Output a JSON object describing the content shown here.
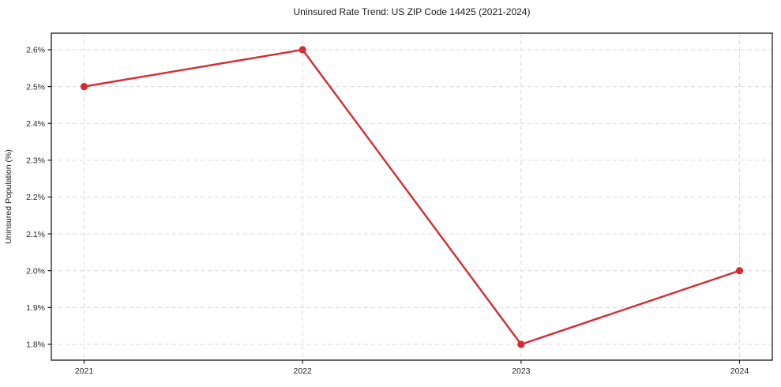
{
  "chart_data": {
    "type": "line",
    "title": "Uninsured Rate Trend: US ZIP Code 14425 (2021-2024)",
    "xlabel": "",
    "ylabel": "Uninsured Population (%)",
    "x": [
      2021,
      2022,
      2023,
      2024
    ],
    "series": [
      {
        "name": "Uninsured Population (%)",
        "values": [
          2.5,
          2.6,
          1.8,
          2.0
        ]
      }
    ],
    "xtick_labels": [
      "2021",
      "2022",
      "2023",
      "2024"
    ],
    "ytick_values": [
      1.8,
      1.9,
      2.0,
      2.1,
      2.2,
      2.3,
      2.4,
      2.5,
      2.6
    ],
    "ytick_labels": [
      "1.8%",
      "1.9%",
      "2.0%",
      "2.1%",
      "2.2%",
      "2.3%",
      "2.4%",
      "2.5%",
      "2.6%"
    ],
    "xlim": [
      2020.85,
      2024.15
    ],
    "ylim": [
      1.757,
      2.645
    ],
    "grid": "dashed both axes",
    "legend": "none",
    "colors": {
      "line": "#d62b33",
      "marker": "#d62b33",
      "grid": "#d9d9d9",
      "spine": "#1a1a1a",
      "text": "#262626",
      "background": "#ffffff"
    },
    "marker": "circle",
    "marker_radius": 4.6,
    "line_width": 2.4
  }
}
